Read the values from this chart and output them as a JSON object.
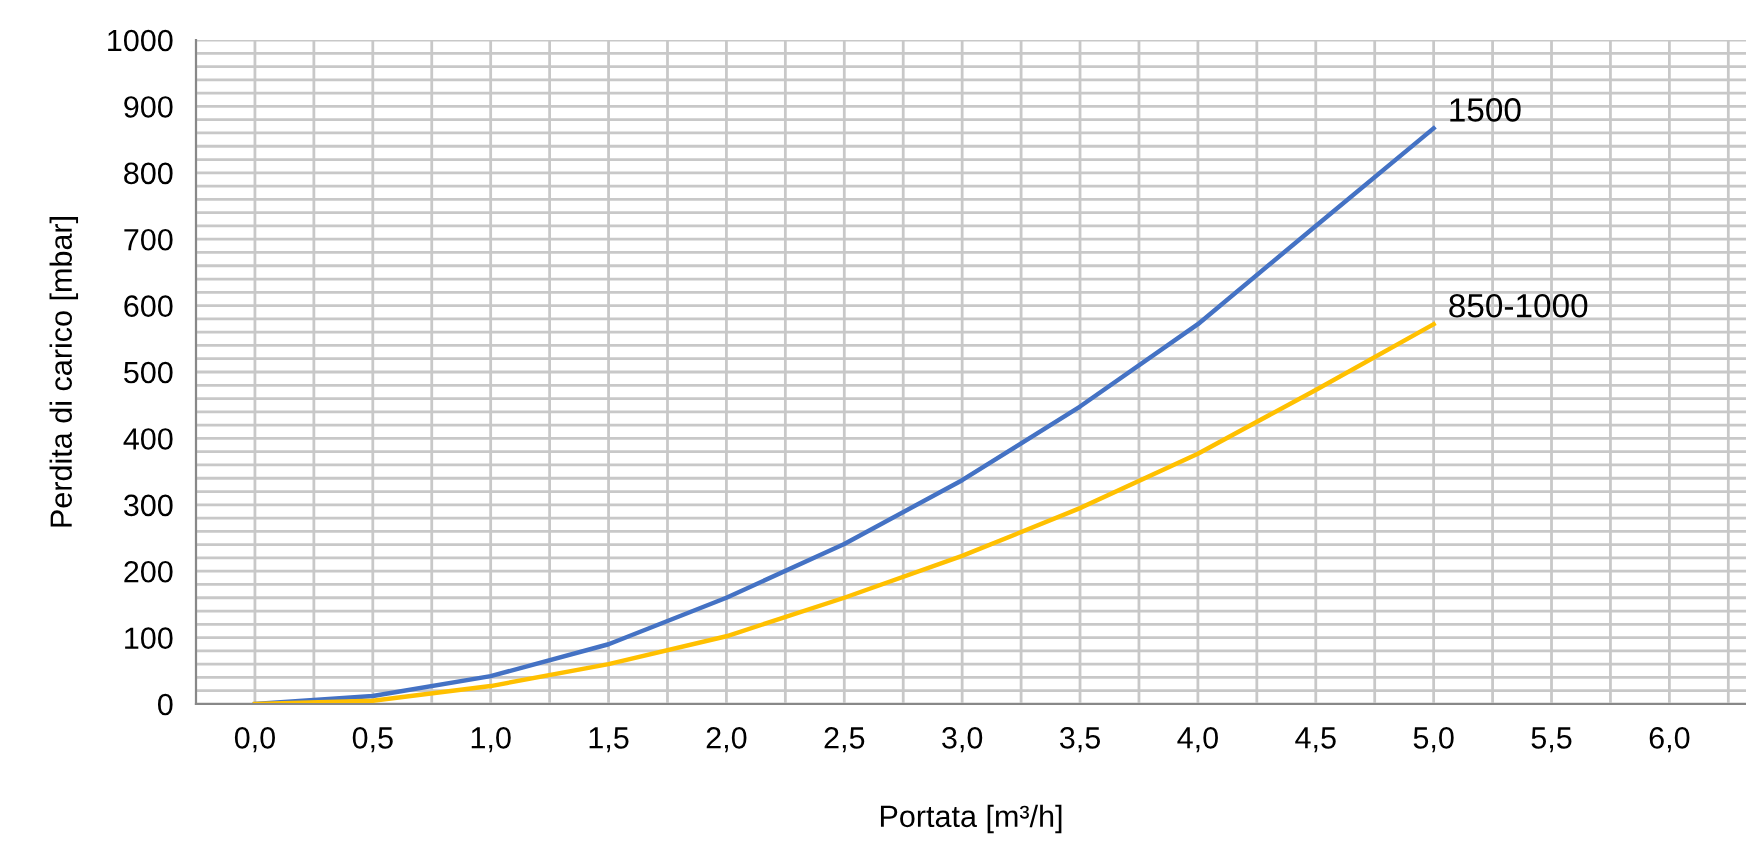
{
  "chart_data": {
    "type": "line",
    "xlabel": "Portata [m³/h]",
    "ylabel": "Perdita di carico [mbar]",
    "categories": [
      "0,0",
      "0,5",
      "1,0",
      "1,5",
      "2,0",
      "2,5",
      "3,0",
      "3,5",
      "4,0",
      "4,5",
      "5,0",
      "5,5",
      "6,0"
    ],
    "series": [
      {
        "name": "1500",
        "color": "#4472c4",
        "values": [
          0,
          12,
          42,
          90,
          160,
          241,
          337,
          448,
          572,
          720,
          867,
          null,
          null
        ]
      },
      {
        "name": "850-1000",
        "color": "#ffc000",
        "values": [
          0,
          5,
          27,
          60,
          102,
          160,
          223,
          295,
          377,
          473,
          572,
          null,
          null
        ]
      }
    ],
    "ylim": [
      0,
      1000
    ],
    "yticks": [
      0,
      {
        "value": 20,
        "label": null
      },
      {
        "value": 40,
        "label": null
      },
      {
        "value": 60,
        "label": null
      },
      {
        "value": 80,
        "label": null
      },
      100,
      {
        "value": 120,
        "label": null
      },
      {
        "value": 140,
        "label": null
      },
      {
        "value": 160,
        "label": null
      },
      {
        "value": 180,
        "label": null
      },
      200,
      {
        "value": 220,
        "label": null
      },
      {
        "value": 240,
        "label": null
      },
      {
        "value": 260,
        "label": null
      },
      {
        "value": 280,
        "label": null
      },
      300,
      {
        "value": 320,
        "label": null
      },
      {
        "value": 340,
        "label": null
      },
      {
        "value": 360,
        "label": null
      },
      {
        "value": 380,
        "label": null
      },
      400,
      {
        "value": 420,
        "label": null
      },
      {
        "value": 440,
        "label": null
      },
      {
        "value": 460,
        "label": null
      },
      {
        "value": 480,
        "label": null
      },
      500,
      {
        "value": 520,
        "label": null
      },
      {
        "value": 540,
        "label": null
      },
      {
        "value": 560,
        "label": null
      },
      {
        "value": 580,
        "label": null
      },
      600,
      {
        "value": 620,
        "label": null
      },
      {
        "value": 640,
        "label": null
      },
      {
        "value": 660,
        "label": null
      },
      {
        "value": 680,
        "label": null
      },
      700,
      {
        "value": 720,
        "label": null
      },
      {
        "value": 740,
        "label": null
      },
      {
        "value": 760,
        "label": null
      },
      {
        "value": 780,
        "label": null
      },
      800,
      {
        "value": 820,
        "label": null
      },
      {
        "value": 840,
        "label": null
      },
      {
        "value": 860,
        "label": null
      },
      {
        "value": 880,
        "label": null
      },
      900,
      {
        "value": 920,
        "label": null
      },
      {
        "value": 940,
        "label": null
      },
      {
        "value": 960,
        "label": null
      },
      {
        "value": 980,
        "label": null
      },
      1000
    ],
    "grid": true,
    "legend": false,
    "marker": "none",
    "line_style": "solid"
  }
}
